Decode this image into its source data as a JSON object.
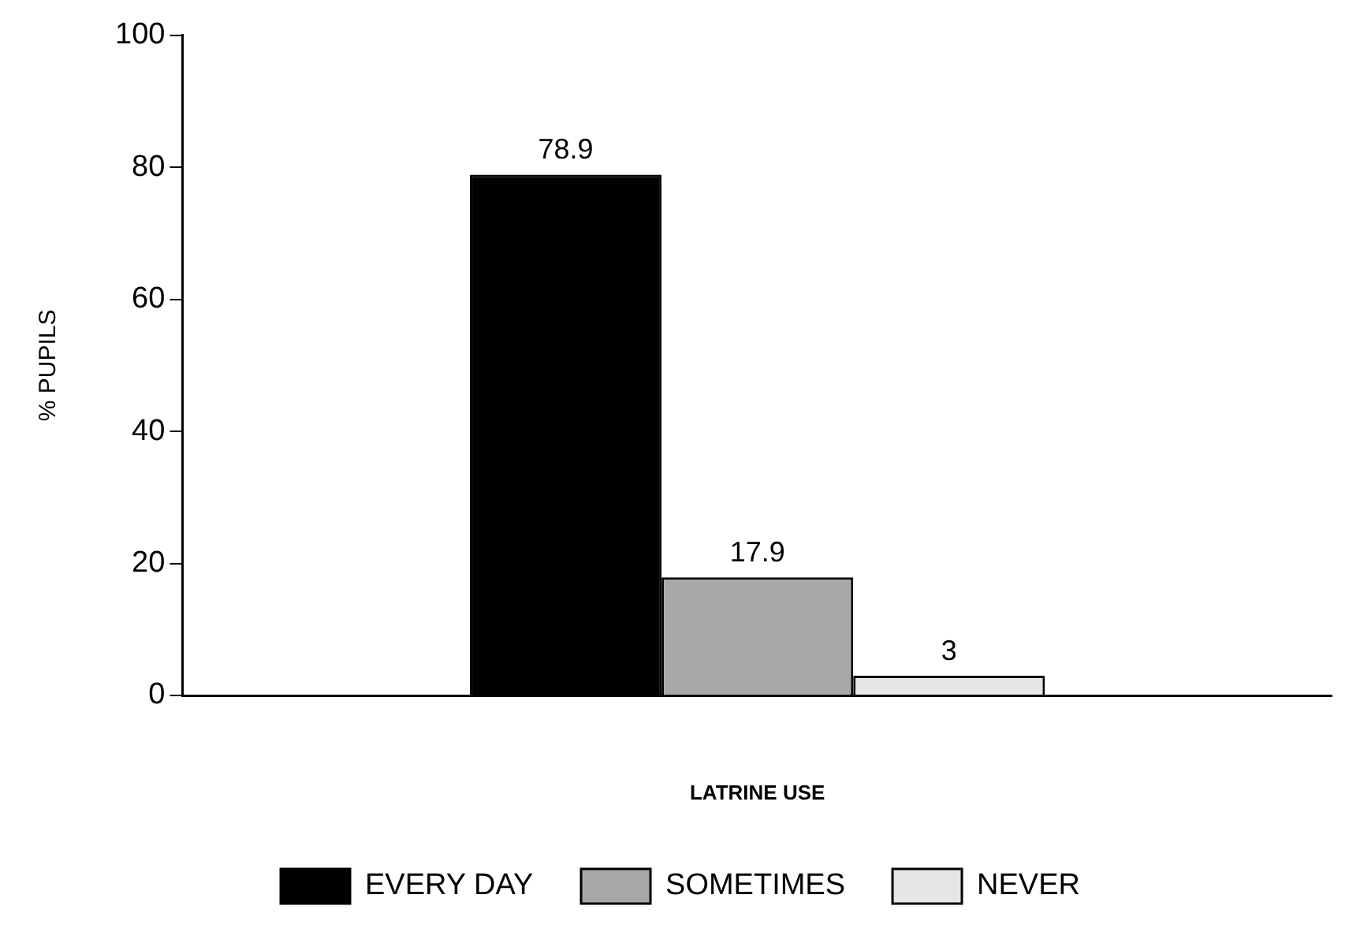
{
  "chart_data": {
    "type": "bar",
    "xlabel": "LATRINE USE",
    "ylabel": "% PUPILS",
    "categories": [
      null
    ],
    "series": [
      {
        "name": "EVERY DAY",
        "color": "#000000",
        "values": [
          78.9
        ]
      },
      {
        "name": "SOMETIMES",
        "color": "#a8a8a8",
        "values": [
          17.9
        ]
      },
      {
        "name": "NEVER",
        "color": "#e6e6e6",
        "values": [
          3
        ]
      }
    ],
    "ylim": [
      0,
      100
    ],
    "yticks": [
      0,
      20,
      40,
      60,
      80,
      100
    ],
    "grid": false,
    "legend": "bottom",
    "data_labels": true
  }
}
